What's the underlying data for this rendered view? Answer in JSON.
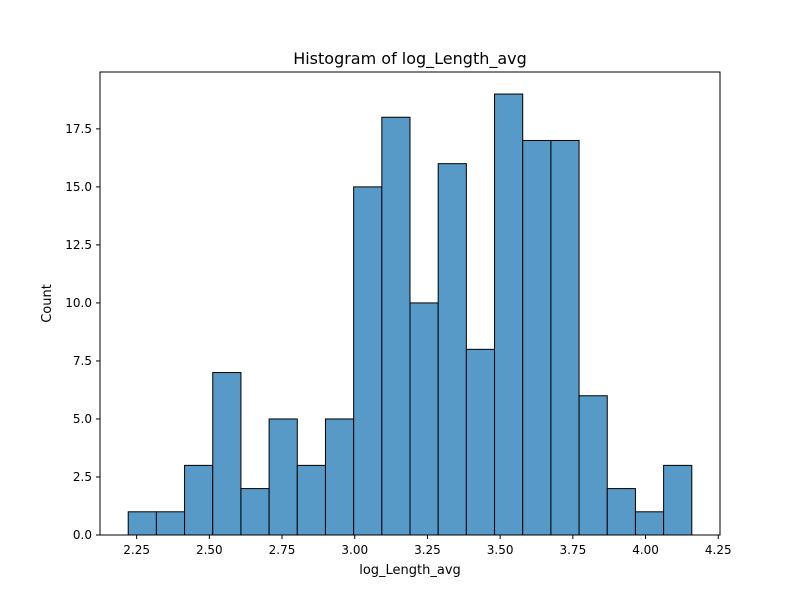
{
  "chart_data": {
    "type": "histogram",
    "title": "Histogram of log_Length_avg",
    "xlabel": "log_Length_avg",
    "ylabel": "Count",
    "bar_color": "#5799C7",
    "bin_edges": [
      2.221,
      2.3179,
      2.4148,
      2.5117,
      2.6086,
      2.7055,
      2.8024,
      2.8993,
      2.9962,
      3.0931,
      3.19,
      3.2869,
      3.3838,
      3.4807,
      3.5776,
      3.6745,
      3.7714,
      3.8683,
      3.9652,
      4.0621,
      4.159
    ],
    "values": [
      1,
      1,
      3,
      7,
      2,
      5,
      3,
      5,
      15,
      18,
      10,
      16,
      8,
      19,
      17,
      17,
      6,
      2,
      1,
      3
    ],
    "xlim": [
      2.124,
      4.256
    ],
    "ylim": [
      0,
      19.95
    ],
    "x_ticks": [
      2.25,
      2.5,
      2.75,
      3.0,
      3.25,
      3.5,
      3.75,
      4.0,
      4.25
    ],
    "x_tick_labels": [
      "2.25",
      "2.50",
      "2.75",
      "3.00",
      "3.25",
      "3.50",
      "3.75",
      "4.00",
      "4.25"
    ],
    "y_ticks": [
      0,
      2.5,
      5,
      7.5,
      10,
      12.5,
      15,
      17.5
    ],
    "y_tick_labels": [
      "0.0",
      "2.5",
      "5.0",
      "7.5",
      "10.0",
      "12.5",
      "15.0",
      "17.5"
    ],
    "grid": false,
    "legend": false
  }
}
